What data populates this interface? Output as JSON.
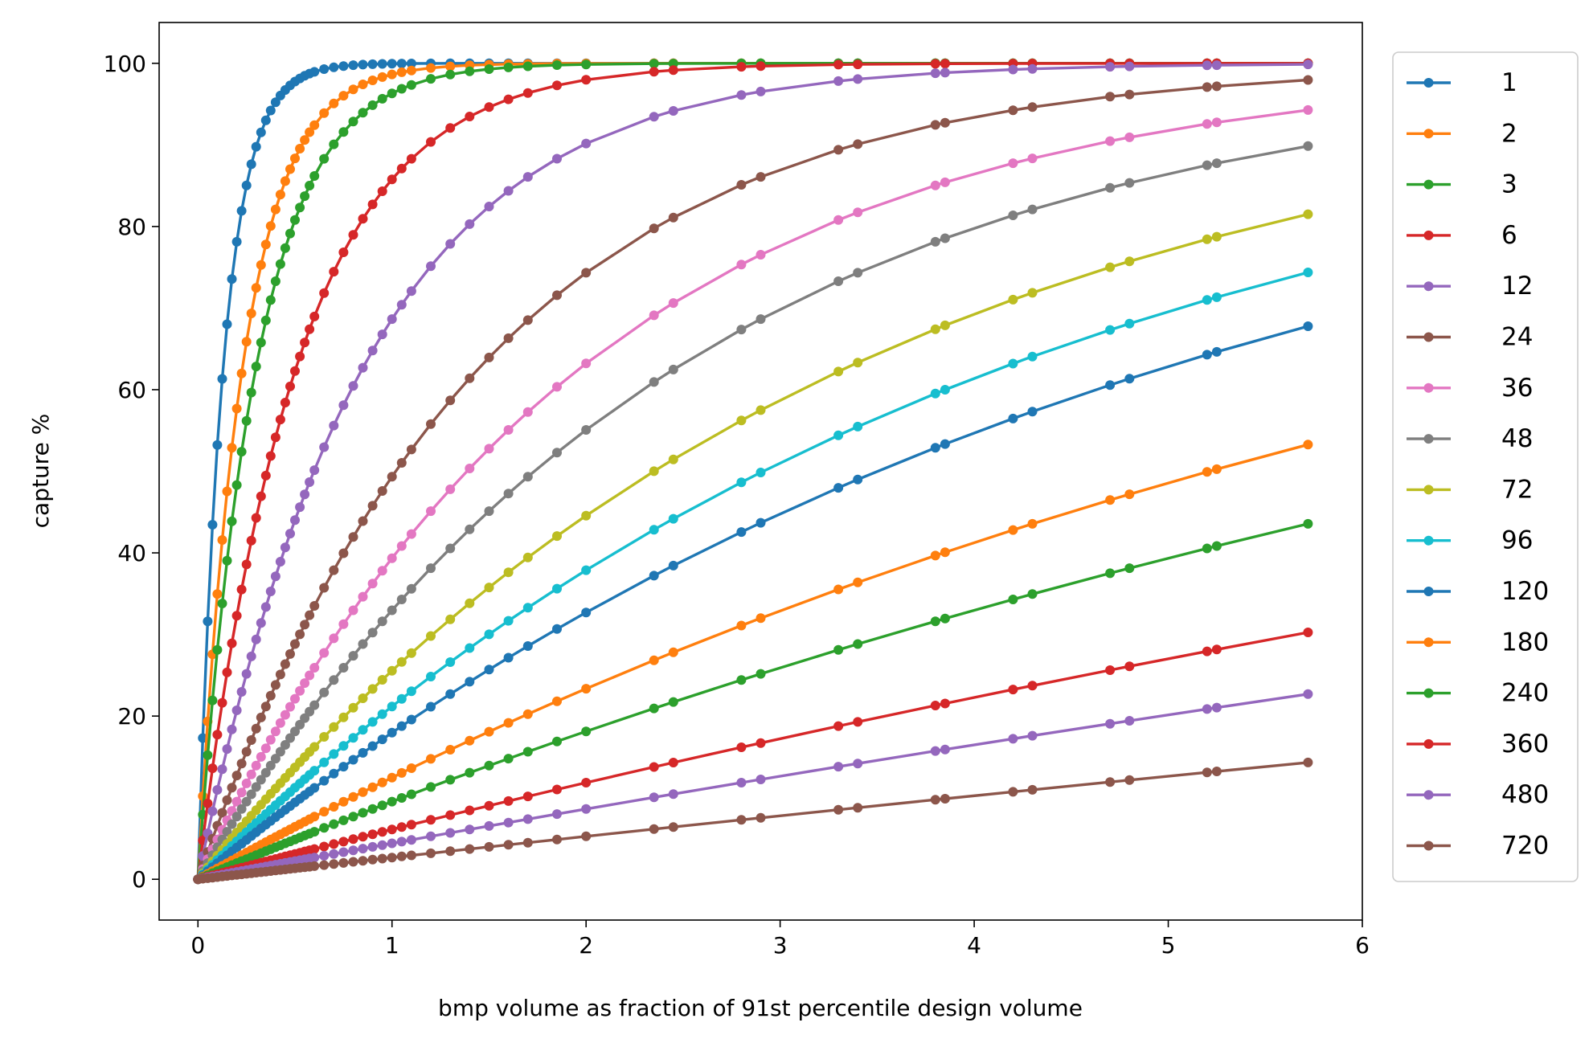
{
  "chart_data": {
    "type": "line",
    "xlabel": "bmp volume as fraction of 91st percentile design volume",
    "ylabel": "capture %",
    "xlim": [
      -0.2,
      6.0
    ],
    "ylim": [
      -5,
      105
    ],
    "x_ticks": [
      "0",
      "1",
      "2",
      "3",
      "4",
      "5",
      "6"
    ],
    "y_ticks": [
      "0",
      "20",
      "40",
      "60",
      "80",
      "100"
    ],
    "grid": false,
    "legend_placement": "outside-right",
    "series": [
      {
        "name": "1",
        "color": "#1f77b4",
        "k": 7.6
      },
      {
        "name": "2",
        "color": "#ff7f0e",
        "k": 4.3
      },
      {
        "name": "3",
        "color": "#2ca02c",
        "k": 3.3
      },
      {
        "name": "6",
        "color": "#d62728",
        "k": 1.95
      },
      {
        "name": "12",
        "color": "#9467bd",
        "k": 1.16
      },
      {
        "name": "24",
        "color": "#8c564b",
        "k": 0.68
      },
      {
        "name": "36",
        "color": "#e377c2",
        "k": 0.5
      },
      {
        "name": "48",
        "color": "#7f7f7f",
        "k": 0.4
      },
      {
        "name": "72",
        "color": "#bcbd22",
        "k": 0.295
      },
      {
        "name": "96",
        "color": "#17becf",
        "k": 0.238
      },
      {
        "name": "120",
        "color": "#1f77b4",
        "k": 0.198
      },
      {
        "name": "180",
        "color": "#ff7f0e",
        "k": 0.133
      },
      {
        "name": "240",
        "color": "#2ca02c",
        "k": 0.1
      },
      {
        "name": "360",
        "color": "#d62728",
        "k": 0.063
      },
      {
        "name": "480",
        "color": "#9467bd",
        "k": 0.045
      },
      {
        "name": "720",
        "color": "#8c564b",
        "k": 0.027
      }
    ]
  }
}
